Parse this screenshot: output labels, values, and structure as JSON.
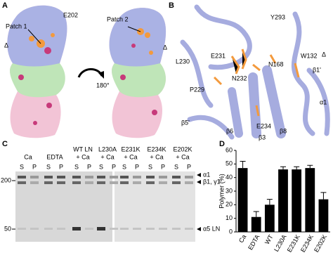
{
  "panel_a": {
    "letter": "A",
    "patch_1": "Patch 1",
    "residue": "E202",
    "delta_left": "Δ",
    "patch_2": "Patch 2",
    "delta_right": "Δ",
    "rotation": "180°"
  },
  "panel_b": {
    "letter": "B",
    "labels": [
      "Y293",
      "L230",
      "E231",
      "N232",
      "N168",
      "W132",
      "Δ",
      "β1'",
      "α1",
      "P229",
      "β5'",
      "E234",
      "β6",
      "β3",
      "β8"
    ]
  },
  "panel_c": {
    "letter": "C",
    "lanes": [
      [
        "Ca"
      ],
      [
        "EDTA"
      ],
      [
        "WT LN",
        "+ Ca"
      ],
      [
        "L230A",
        "+ Ca"
      ],
      [
        "E231K",
        "+ Ca"
      ],
      [
        "E234K",
        "+ Ca"
      ],
      [
        "E202K",
        "+ Ca"
      ]
    ],
    "fractions": [
      "S",
      "P"
    ],
    "markers": [
      200,
      50
    ],
    "bands": [
      "α1",
      "β1, γ1",
      "α5 LN"
    ]
  },
  "chart_data": {
    "type": "bar",
    "panel_label": "D",
    "y_label": "Polymer (%)",
    "categories": [
      "Ca",
      "EDTA",
      "WT",
      "L230A",
      "E231K",
      "E234K",
      "E202K"
    ],
    "values": [
      47,
      11,
      20,
      46,
      46,
      47,
      24
    ],
    "errors": [
      5,
      4,
      4,
      2,
      2,
      2,
      5
    ],
    "color": "#000000",
    "ylim": [
      0,
      60
    ],
    "yticks": [
      0,
      10,
      20,
      30,
      40,
      50,
      60
    ]
  }
}
